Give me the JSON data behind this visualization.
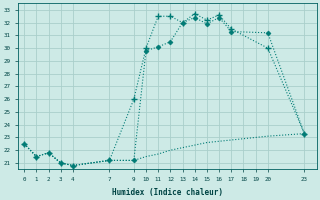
{
  "xlabel": "Humidex (Indice chaleur)",
  "bg_color": "#cdeae6",
  "grid_color": "#aacfcb",
  "line_color": "#007b75",
  "xlim": [
    -0.5,
    24.0
  ],
  "ylim": [
    20.5,
    33.5
  ],
  "xticks": [
    0,
    1,
    2,
    3,
    4,
    7,
    9,
    10,
    11,
    12,
    13,
    14,
    15,
    16,
    17,
    18,
    19,
    20,
    23
  ],
  "yticks": [
    21,
    22,
    23,
    24,
    25,
    26,
    27,
    28,
    29,
    30,
    31,
    32,
    33
  ],
  "curve1_x": [
    0,
    1,
    2,
    3,
    4,
    7,
    9,
    10,
    11,
    12,
    13,
    14,
    15,
    16,
    17,
    20,
    23
  ],
  "curve1_y": [
    22.5,
    21.5,
    21.8,
    21.0,
    20.8,
    21.2,
    26.0,
    30.0,
    32.5,
    32.5,
    32.0,
    32.7,
    32.2,
    32.6,
    31.5,
    30.0,
    23.3
  ],
  "curve2_x": [
    0,
    1,
    2,
    3,
    4,
    7,
    9,
    10,
    11,
    12,
    13,
    14,
    15,
    16,
    17,
    20,
    23
  ],
  "curve2_y": [
    22.5,
    21.5,
    21.8,
    21.0,
    20.8,
    21.2,
    21.2,
    29.8,
    30.1,
    30.5,
    32.0,
    32.4,
    31.9,
    32.4,
    31.3,
    31.2,
    23.3
  ],
  "curve3_x": [
    0,
    1,
    2,
    3,
    4,
    7,
    9,
    10,
    11,
    12,
    13,
    14,
    15,
    16,
    17,
    20,
    23
  ],
  "curve3_y": [
    22.5,
    21.5,
    21.8,
    21.0,
    20.8,
    21.2,
    21.2,
    21.5,
    21.7,
    22.0,
    22.2,
    22.4,
    22.6,
    22.7,
    22.8,
    23.1,
    23.3
  ]
}
